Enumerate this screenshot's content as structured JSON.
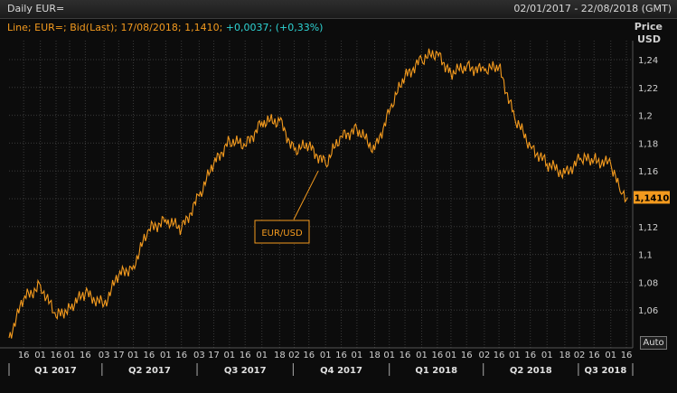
{
  "window": {
    "title": "Daily EUR=",
    "date_range": "02/01/2017 - 22/08/2018 (GMT)"
  },
  "legend": {
    "text": "Line; EUR=; Bid(Last); 17/08/2018; 1,1410;",
    "change": "+0,0037; (+0,33%)"
  },
  "axis": {
    "y_title_1": "Price",
    "y_title_2": "USD",
    "auto_button": "Auto"
  },
  "colors": {
    "line": "#f39a1e",
    "change": "#2ed3d3",
    "grid": "#3a3a3a"
  },
  "chart_data": {
    "type": "line",
    "series": [
      {
        "name": "EUR/USD",
        "x": [
          "2017-01-02",
          "2017-01-16",
          "2017-02-01",
          "2017-02-16",
          "2017-03-01",
          "2017-03-16",
          "2017-04-03",
          "2017-04-17",
          "2017-05-01",
          "2017-05-16",
          "2017-06-01",
          "2017-06-16",
          "2017-07-03",
          "2017-07-17",
          "2017-08-01",
          "2017-08-16",
          "2017-09-01",
          "2017-09-18",
          "2017-10-02",
          "2017-10-16",
          "2017-11-01",
          "2017-11-16",
          "2017-12-01",
          "2017-12-18",
          "2018-01-02",
          "2018-01-16",
          "2018-02-01",
          "2018-02-16",
          "2018-03-01",
          "2018-03-16",
          "2018-04-02",
          "2018-04-16",
          "2018-05-01",
          "2018-05-16",
          "2018-06-01",
          "2018-06-18",
          "2018-07-02",
          "2018-07-16",
          "2018-08-01",
          "2018-08-10",
          "2018-08-17"
        ],
        "y": [
          1.04,
          1.068,
          1.078,
          1.055,
          1.062,
          1.072,
          1.064,
          1.085,
          1.092,
          1.118,
          1.125,
          1.118,
          1.142,
          1.165,
          1.182,
          1.178,
          1.195,
          1.196,
          1.175,
          1.178,
          1.165,
          1.185,
          1.19,
          1.175,
          1.205,
          1.228,
          1.24,
          1.245,
          1.23,
          1.235,
          1.232,
          1.235,
          1.198,
          1.178,
          1.165,
          1.158,
          1.168,
          1.168,
          1.165,
          1.145,
          1.141
        ]
      }
    ],
    "last_value": "1,1410",
    "annotation": "EUR/USD",
    "ylabel": "Price USD",
    "ylim": [
      1.04,
      1.25
    ],
    "yticks": [
      "1,06",
      "1,08",
      "1,1",
      "1,12",
      "1,14",
      "1,16",
      "1,18",
      "1,2",
      "1,22",
      "1,24"
    ],
    "ytick_values": [
      1.06,
      1.08,
      1.1,
      1.12,
      1.14,
      1.16,
      1.18,
      1.2,
      1.22,
      1.24
    ],
    "xticks": [
      {
        "label": "16",
        "date": "2017-01-16"
      },
      {
        "label": "01",
        "date": "2017-02-01"
      },
      {
        "label": "16",
        "date": "2017-02-16"
      },
      {
        "label": "01",
        "date": "2017-03-01"
      },
      {
        "label": "16",
        "date": "2017-03-16"
      },
      {
        "label": "03",
        "date": "2017-04-03"
      },
      {
        "label": "17",
        "date": "2017-04-17"
      },
      {
        "label": "01",
        "date": "2017-05-01"
      },
      {
        "label": "16",
        "date": "2017-05-16"
      },
      {
        "label": "01",
        "date": "2017-06-01"
      },
      {
        "label": "16",
        "date": "2017-06-16"
      },
      {
        "label": "03",
        "date": "2017-07-03"
      },
      {
        "label": "17",
        "date": "2017-07-17"
      },
      {
        "label": "01",
        "date": "2017-08-01"
      },
      {
        "label": "16",
        "date": "2017-08-16"
      },
      {
        "label": "01",
        "date": "2017-09-01"
      },
      {
        "label": "18",
        "date": "2017-09-18"
      },
      {
        "label": "02",
        "date": "2017-10-02"
      },
      {
        "label": "16",
        "date": "2017-10-16"
      },
      {
        "label": "01",
        "date": "2017-11-01"
      },
      {
        "label": "16",
        "date": "2017-11-16"
      },
      {
        "label": "01",
        "date": "2017-12-01"
      },
      {
        "label": "18",
        "date": "2017-12-18"
      },
      {
        "label": "01",
        "date": "2018-01-01"
      },
      {
        "label": "16",
        "date": "2018-01-16"
      },
      {
        "label": "01",
        "date": "2018-02-01"
      },
      {
        "label": "16",
        "date": "2018-02-16"
      },
      {
        "label": "01",
        "date": "2018-03-01"
      },
      {
        "label": "16",
        "date": "2018-03-16"
      },
      {
        "label": "02",
        "date": "2018-04-02"
      },
      {
        "label": "16",
        "date": "2018-04-16"
      },
      {
        "label": "01",
        "date": "2018-05-01"
      },
      {
        "label": "16",
        "date": "2018-05-16"
      },
      {
        "label": "01",
        "date": "2018-06-01"
      },
      {
        "label": "18",
        "date": "2018-06-18"
      },
      {
        "label": "02",
        "date": "2018-07-02"
      },
      {
        "label": "16",
        "date": "2018-07-16"
      },
      {
        "label": "01",
        "date": "2018-08-01"
      },
      {
        "label": "16",
        "date": "2018-08-16"
      }
    ],
    "quarters": [
      "Q1 2017",
      "Q2 2017",
      "Q3 2017",
      "Q4 2017",
      "Q1 2018",
      "Q2 2018",
      "Q3 2018"
    ],
    "grid": true
  }
}
